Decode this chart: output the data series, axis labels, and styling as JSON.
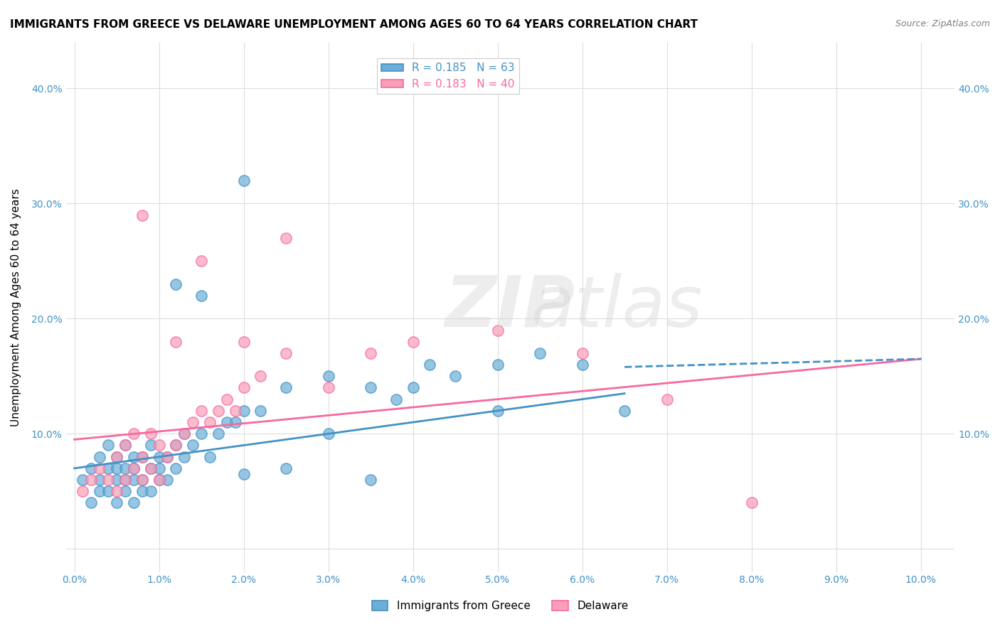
{
  "title": "IMMIGRANTS FROM GREECE VS DELAWARE UNEMPLOYMENT AMONG AGES 60 TO 64 YEARS CORRELATION CHART",
  "source": "Source: ZipAtlas.com",
  "xlabel": "",
  "ylabel": "Unemployment Among Ages 60 to 64 years",
  "x_ticks": [
    0.0,
    0.01,
    0.02,
    0.03,
    0.04,
    0.05,
    0.06,
    0.07,
    0.08,
    0.09,
    0.1
  ],
  "x_tick_labels": [
    "0.0%",
    "1.0%",
    "2.0%",
    "3.0%",
    "4.0%",
    "5.0%",
    "6.0%",
    "7.0%",
    "8.0%",
    "9.0%",
    "10.0%"
  ],
  "y_ticks": [
    0.0,
    0.1,
    0.2,
    0.3,
    0.4
  ],
  "y_tick_labels_left": [
    "",
    "10.0%",
    "20.0%",
    "30.0%",
    "40.0%"
  ],
  "y_tick_labels_right": [
    "",
    "10.0%",
    "20.0%",
    "30.0%",
    "40.0%"
  ],
  "xlim": [
    -0.001,
    0.104
  ],
  "ylim": [
    -0.02,
    0.44
  ],
  "legend1_r": "0.185",
  "legend1_n": "63",
  "legend2_r": "0.183",
  "legend2_n": "40",
  "blue_color": "#6baed6",
  "pink_color": "#fa9fb5",
  "blue_line_color": "#4292c6",
  "pink_line_color": "#f768a1",
  "watermark": "ZIPatlas",
  "blue_scatter_x": [
    0.001,
    0.002,
    0.002,
    0.003,
    0.003,
    0.003,
    0.004,
    0.004,
    0.004,
    0.005,
    0.005,
    0.005,
    0.005,
    0.006,
    0.006,
    0.006,
    0.006,
    0.007,
    0.007,
    0.007,
    0.007,
    0.008,
    0.008,
    0.008,
    0.009,
    0.009,
    0.009,
    0.01,
    0.01,
    0.01,
    0.011,
    0.011,
    0.012,
    0.012,
    0.013,
    0.013,
    0.014,
    0.015,
    0.016,
    0.017,
    0.018,
    0.019,
    0.02,
    0.022,
    0.025,
    0.03,
    0.035,
    0.038,
    0.04,
    0.042,
    0.045,
    0.05,
    0.055,
    0.06,
    0.065,
    0.012,
    0.015,
    0.02,
    0.025,
    0.035,
    0.02,
    0.03,
    0.05
  ],
  "blue_scatter_y": [
    0.06,
    0.04,
    0.07,
    0.05,
    0.06,
    0.08,
    0.05,
    0.07,
    0.09,
    0.04,
    0.06,
    0.07,
    0.08,
    0.05,
    0.06,
    0.07,
    0.09,
    0.04,
    0.06,
    0.07,
    0.08,
    0.05,
    0.06,
    0.08,
    0.05,
    0.07,
    0.09,
    0.06,
    0.07,
    0.08,
    0.06,
    0.08,
    0.07,
    0.09,
    0.08,
    0.1,
    0.09,
    0.1,
    0.08,
    0.1,
    0.11,
    0.11,
    0.12,
    0.12,
    0.14,
    0.15,
    0.14,
    0.13,
    0.14,
    0.16,
    0.15,
    0.16,
    0.17,
    0.16,
    0.12,
    0.23,
    0.22,
    0.32,
    0.07,
    0.06,
    0.065,
    0.1,
    0.12
  ],
  "pink_scatter_x": [
    0.001,
    0.002,
    0.003,
    0.004,
    0.005,
    0.005,
    0.006,
    0.006,
    0.007,
    0.007,
    0.008,
    0.008,
    0.009,
    0.009,
    0.01,
    0.01,
    0.011,
    0.012,
    0.013,
    0.014,
    0.015,
    0.016,
    0.017,
    0.018,
    0.019,
    0.02,
    0.022,
    0.025,
    0.03,
    0.035,
    0.04,
    0.05,
    0.06,
    0.07,
    0.08,
    0.008,
    0.012,
    0.015,
    0.02,
    0.025
  ],
  "pink_scatter_y": [
    0.05,
    0.06,
    0.07,
    0.06,
    0.05,
    0.08,
    0.06,
    0.09,
    0.07,
    0.1,
    0.06,
    0.08,
    0.07,
    0.1,
    0.06,
    0.09,
    0.08,
    0.09,
    0.1,
    0.11,
    0.12,
    0.11,
    0.12,
    0.13,
    0.12,
    0.14,
    0.15,
    0.17,
    0.14,
    0.17,
    0.18,
    0.19,
    0.17,
    0.13,
    0.04,
    0.29,
    0.18,
    0.25,
    0.18,
    0.27
  ],
  "blue_line_x": [
    0.0,
    0.065
  ],
  "blue_line_y": [
    0.07,
    0.135
  ],
  "pink_line_x": [
    0.0,
    0.1
  ],
  "pink_line_y": [
    0.095,
    0.165
  ],
  "grid_color": "#dddddd",
  "background_color": "#ffffff",
  "title_fontsize": 11,
  "axis_label_fontsize": 11,
  "tick_fontsize": 10,
  "legend_fontsize": 11
}
